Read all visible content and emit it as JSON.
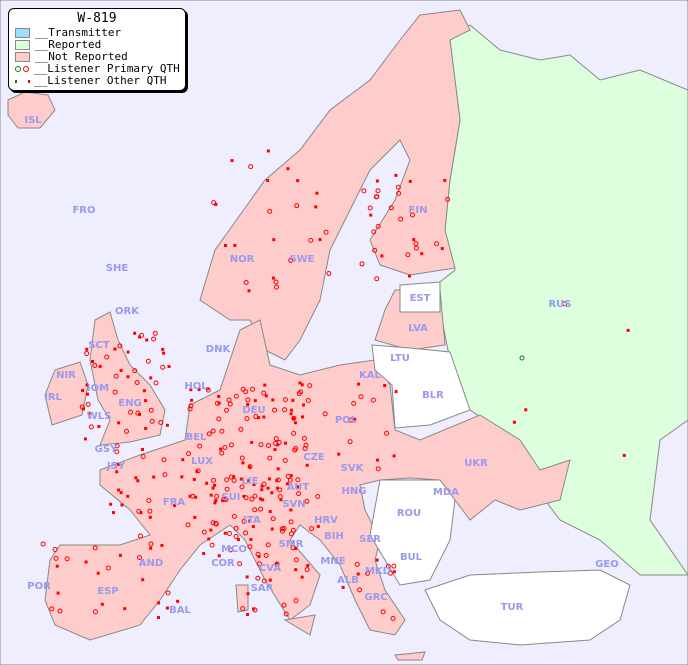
{
  "legend": {
    "title": "W-819",
    "items": [
      {
        "label": "__Transmitter",
        "color": "#99ddff"
      },
      {
        "label": "__Reported",
        "color": "#ddffdd"
      },
      {
        "label": "__Not Reported",
        "color": "#ffcccc"
      },
      {
        "label": "__Listener Primary QTH",
        "colors": [
          "#008800",
          "#ff0000"
        ]
      },
      {
        "label": "__Listener Other QTH",
        "colors": [
          "#008800",
          "#ff0000"
        ]
      }
    ]
  },
  "colors": {
    "sea": "#eeeeff",
    "reported": "#ddffdd",
    "not_reported": "#ffcccc",
    "no_data": "#ffffff",
    "listener": "#ff0000",
    "label": "#9999ee"
  },
  "countries": [
    "ISL",
    "FRO",
    "SHE",
    "ORK",
    "NOR",
    "SWE",
    "FIN",
    "RUS",
    "EST",
    "LVA",
    "LTU",
    "KAL",
    "BLR",
    "DNK",
    "HOL",
    "DEU",
    "POL",
    "IRL",
    "IOM",
    "WLS",
    "ENG",
    "GSY",
    "JSY",
    "BEL",
    "LUX",
    "FRA",
    "SUI",
    "LIE",
    "AUT",
    "CZE",
    "SVK",
    "HNG",
    "UKR",
    "MDA",
    "ROU",
    "SVN",
    "HRV",
    "BIH",
    "SER",
    "BUL",
    "ITA",
    "MCO",
    "COR",
    "SMR",
    "CVA",
    "MNE",
    "ALB",
    "MKD",
    "GRC",
    "TUR",
    "GEO",
    "AND",
    "POR",
    "ESP",
    "BAL",
    "SAR",
    "SCT",
    "NIR"
  ]
}
